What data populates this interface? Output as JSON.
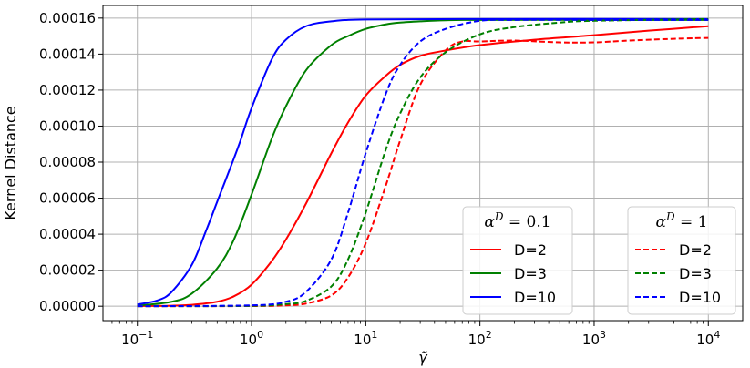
{
  "chart_data": {
    "type": "line",
    "title": "",
    "xlabel": "γ̃",
    "ylabel": "Kernel Distance",
    "x_scale": "log",
    "xlim": [
      0.05,
      20000
    ],
    "ylim": [
      -8e-06,
      0.000167
    ],
    "grid": true,
    "x_ticks": [
      {
        "value": 0.1,
        "base": "10",
        "exp": "−1"
      },
      {
        "value": 1,
        "base": "10",
        "exp": "0"
      },
      {
        "value": 10,
        "base": "10",
        "exp": "1"
      },
      {
        "value": 100,
        "base": "10",
        "exp": "2"
      },
      {
        "value": 1000,
        "base": "10",
        "exp": "3"
      },
      {
        "value": 10000,
        "base": "10",
        "exp": "4"
      }
    ],
    "y_ticks": [
      {
        "value": 0,
        "label": "0.00000"
      },
      {
        "value": 2e-05,
        "label": "0.00002"
      },
      {
        "value": 4e-05,
        "label": "0.00004"
      },
      {
        "value": 6e-05,
        "label": "0.00006"
      },
      {
        "value": 8e-05,
        "label": "0.00008"
      },
      {
        "value": 0.0001,
        "label": "0.00010"
      },
      {
        "value": 0.00012,
        "label": "0.00012"
      },
      {
        "value": 0.00014,
        "label": "0.00014"
      },
      {
        "value": 0.00016,
        "label": "0.00016"
      }
    ],
    "legends": [
      {
        "title_base": "α",
        "title_sup": "D",
        "title_rest": " = 0.1",
        "position": "lower-center-right",
        "entries": [
          "D=2",
          "D=3",
          "D=10"
        ]
      },
      {
        "title_base": "α",
        "title_sup": "D",
        "title_rest": " = 1",
        "position": "lower-right",
        "entries": [
          "D=2",
          "D=3",
          "D=10"
        ]
      }
    ],
    "series": [
      {
        "name": "D=2",
        "group": "αD=0.1",
        "color": "#ff0000",
        "dash": "solid",
        "x": [
          0.1,
          0.2,
          0.3,
          0.5,
          0.7,
          1,
          1.5,
          2,
          3,
          5,
          7,
          10,
          15,
          20,
          30,
          50,
          100,
          300,
          1000,
          3000,
          10000
        ],
        "y": [
          1e-07,
          3e-07,
          8e-07,
          2.5e-06,
          5.5e-06,
          1.2e-05,
          2.5e-05,
          3.7e-05,
          5.7e-05,
          8.5e-05,
          0.000102,
          0.000117,
          0.000128,
          0.000134,
          0.000139,
          0.000142,
          0.000145,
          0.000148,
          0.0001505,
          0.000153,
          0.0001555
        ]
      },
      {
        "name": "D=3",
        "group": "αD=0.1",
        "color": "#008000",
        "dash": "solid",
        "x": [
          0.1,
          0.2,
          0.3,
          0.5,
          0.7,
          1,
          1.5,
          2,
          3,
          5,
          7,
          10,
          15,
          20,
          30,
          50,
          100,
          1000,
          10000
        ],
        "y": [
          3e-07,
          2.5e-06,
          7e-06,
          2.1e-05,
          3.7e-05,
          6.2e-05,
          9.3e-05,
          0.000111,
          0.000131,
          0.000145,
          0.00015,
          0.000154,
          0.0001565,
          0.0001575,
          0.0001582,
          0.0001588,
          0.000159,
          0.000159,
          0.000159
        ]
      },
      {
        "name": "D=10",
        "group": "αD=0.1",
        "color": "#0000ff",
        "dash": "solid",
        "x": [
          0.1,
          0.15,
          0.2,
          0.3,
          0.4,
          0.5,
          0.7,
          0.8,
          1,
          1.5,
          2,
          3,
          5,
          10,
          100,
          10000
        ],
        "y": [
          1e-06,
          3.2e-06,
          8e-06,
          2.3e-05,
          4.2e-05,
          5.8e-05,
          8.2e-05,
          9.2e-05,
          0.00011,
          0.000137,
          0.000148,
          0.0001555,
          0.0001582,
          0.0001592,
          0.0001595,
          0.0001595
        ]
      },
      {
        "name": "D=2",
        "group": "αD=1",
        "color": "#ff0000",
        "dash": "dashed",
        "x": [
          0.1,
          1,
          2,
          3,
          5,
          7,
          10,
          15,
          20,
          30,
          50,
          70,
          100,
          200,
          500,
          1000,
          2000,
          5000,
          10000
        ],
        "y": [
          0.0,
          1e-07,
          5e-07,
          1.5e-06,
          6e-06,
          1.6e-05,
          3.5e-05,
          6.7e-05,
          9.2e-05,
          0.000123,
          0.000142,
          0.000147,
          0.000147,
          0.0001475,
          0.0001465,
          0.0001465,
          0.0001475,
          0.0001485,
          0.000149
        ]
      },
      {
        "name": "D=3",
        "group": "αD=1",
        "color": "#008000",
        "dash": "dashed",
        "x": [
          0.1,
          1,
          2,
          3,
          5,
          7,
          10,
          15,
          20,
          30,
          50,
          100,
          200,
          500,
          1000,
          10000
        ],
        "y": [
          0.0,
          2e-07,
          1.2e-06,
          3e-06,
          1.1e-05,
          2.6e-05,
          5.2e-05,
          8.7e-05,
          0.000107,
          0.000127,
          0.000141,
          0.000151,
          0.000155,
          0.0001575,
          0.0001585,
          0.0001595
        ]
      },
      {
        "name": "D=10",
        "group": "αD=1",
        "color": "#0000ff",
        "dash": "dashed",
        "x": [
          0.1,
          1,
          2,
          3,
          5,
          7,
          10,
          15,
          20,
          30,
          50,
          100,
          200,
          1000,
          10000
        ],
        "y": [
          0.0,
          5e-07,
          2.5e-06,
          8e-06,
          2.6e-05,
          5.2e-05,
          8.5e-05,
          0.000118,
          0.000134,
          0.000147,
          0.000154,
          0.0001585,
          0.000159,
          0.000159,
          0.000159
        ]
      }
    ]
  }
}
